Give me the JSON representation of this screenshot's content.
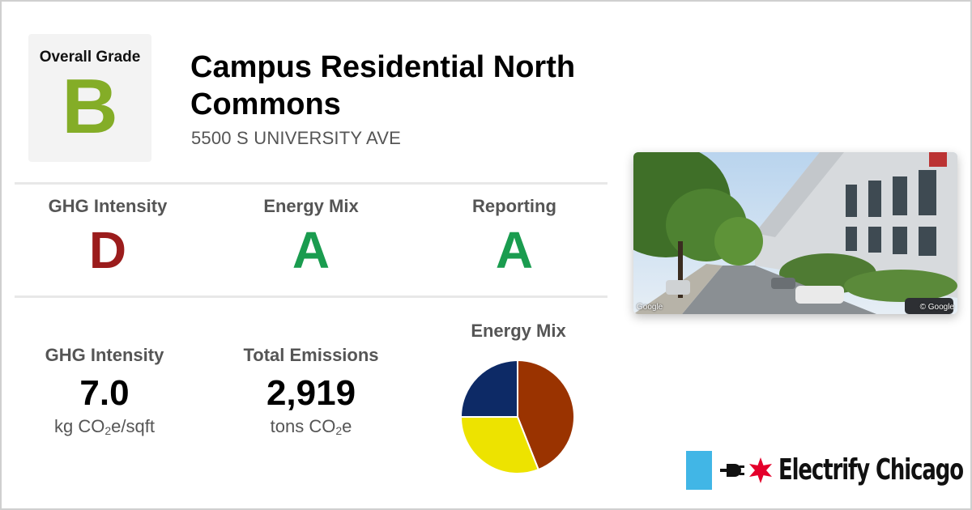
{
  "overall": {
    "label": "Overall Grade",
    "grade": "B",
    "color": "#84ad27"
  },
  "building": {
    "name": "Campus Residential North Commons",
    "address": "5500 S UNIVERSITY AVE"
  },
  "grades": [
    {
      "label": "GHG Intensity",
      "grade": "D",
      "color": "#9b1c1c"
    },
    {
      "label": "Energy Mix",
      "grade": "A",
      "color": "#1a9c4f"
    },
    {
      "label": "Reporting",
      "grade": "A",
      "color": "#1a9c4f"
    }
  ],
  "stats": {
    "ghg": {
      "label": "GHG Intensity",
      "value": "7.0",
      "unit_prefix": "kg CO",
      "unit_sub": "2",
      "unit_suffix": "e/sqft"
    },
    "emissions": {
      "label": "Total Emissions",
      "value": "2,919",
      "unit_prefix": "tons CO",
      "unit_sub": "2",
      "unit_suffix": "e"
    }
  },
  "energy_mix": {
    "title": "Energy Mix",
    "slices": [
      {
        "fraction": 0.44,
        "color": "#9a3300"
      },
      {
        "fraction": 0.31,
        "color": "#ede300"
      },
      {
        "fraction": 0.25,
        "color": "#0d2a66"
      }
    ]
  },
  "photo": {
    "credit_left": "Google",
    "credit_right": "© Google"
  },
  "brand": {
    "name": "Electrify Chicago",
    "flag_color": "#41b6e6",
    "star_color": "#e4002b"
  }
}
